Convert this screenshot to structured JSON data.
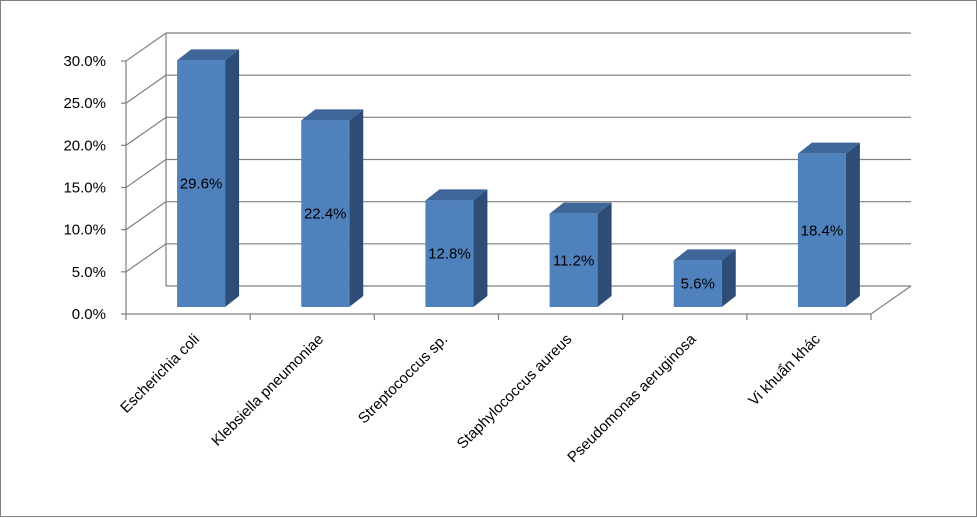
{
  "chart_data": {
    "type": "bar",
    "style": "3d-column",
    "categories": [
      "Escherichia coli",
      "Klebsiella pneumoniae",
      "Streptococcus sp.",
      "Staphylococcus aureus",
      "Pseudomonas aeruginosa",
      "Vi khuẩn khác"
    ],
    "values": [
      29.6,
      22.4,
      12.8,
      11.2,
      5.6,
      18.4
    ],
    "data_labels": [
      "29.6%",
      "22.4%",
      "12.8%",
      "11.2%",
      "5.6%",
      "18.4%"
    ],
    "ylim": [
      0,
      30
    ],
    "y_ticks": [
      0,
      5,
      10,
      15,
      20,
      25,
      30
    ],
    "y_tick_labels": [
      "0.0%",
      "5.0%",
      "10.0%",
      "15.0%",
      "20.0%",
      "25.0%",
      "30.0%"
    ],
    "grid": true,
    "legend": "none",
    "colors": {
      "bar_front": "#4F81BD",
      "bar_side": "#2E4D76",
      "bar_top": "#3E6699",
      "grid": "#7f7f7f"
    }
  }
}
